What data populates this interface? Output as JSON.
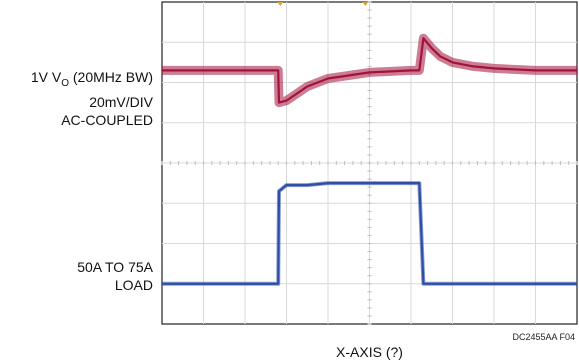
{
  "chart_data": {
    "type": "line",
    "xlabel": "X-AXIS (?)",
    "ylabel": "",
    "grid": true,
    "divisions": {
      "x": 10,
      "y": 8
    },
    "x": [
      0,
      2.8,
      2.82,
      3.0,
      3.5,
      4.0,
      5.0,
      6.0,
      6.2,
      6.3,
      6.5,
      6.7,
      7.0,
      7.5,
      8.0,
      9.0,
      10.0
    ],
    "series": [
      {
        "name": "1V V0 (20MHz BW)",
        "color": "#a3123a",
        "unit": "div",
        "values": [
          6.3,
          6.3,
          5.5,
          5.55,
          5.9,
          6.1,
          6.25,
          6.3,
          6.3,
          7.1,
          6.85,
          6.65,
          6.5,
          6.4,
          6.35,
          6.3,
          6.3
        ]
      },
      {
        "name": "50A TO 75A LOAD",
        "color": "#2d4fa8",
        "unit": "div",
        "values": [
          1.0,
          1.0,
          3.3,
          3.45,
          3.45,
          3.5,
          3.5,
          3.5,
          3.5,
          1.0,
          1.0,
          1.0,
          1.0,
          1.0,
          1.0,
          1.0,
          1.0
        ]
      }
    ]
  },
  "labels": {
    "trace1_line1_main": "1V V",
    "trace1_line1_sub": "O",
    "trace1_line1_rest": " (20MHz BW)",
    "trace1_line2": "20mV/DIV",
    "trace1_line3": "AC-COUPLED",
    "trace2_line1": "50A TO 75A",
    "trace2_line2": "LOAD",
    "figure_code": "DC2455AA F04"
  }
}
